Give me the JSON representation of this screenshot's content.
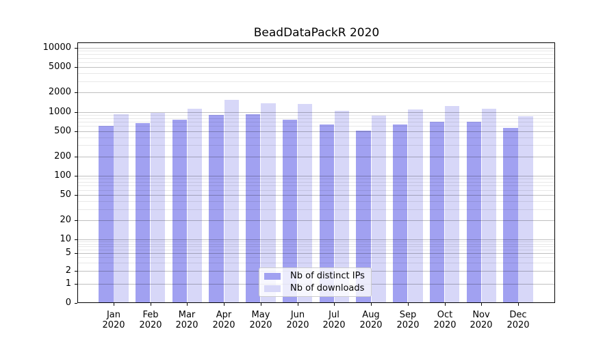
{
  "title": "BeadDataPackR 2020",
  "chart_data": {
    "type": "bar",
    "title": "BeadDataPackR 2020",
    "categories": [
      "Jan 2020",
      "Feb 2020",
      "Mar 2020",
      "Apr 2020",
      "May 2020",
      "Jun 2020",
      "Jul 2020",
      "Aug 2020",
      "Sep 2020",
      "Oct 2020",
      "Nov 2020",
      "Dec 2020"
    ],
    "series": [
      {
        "key": "distinct-ips",
        "name": "Nb of distinct IPs",
        "color": "#a1a1f1",
        "values": [
          600,
          660,
          762,
          893,
          918,
          757,
          632,
          514,
          627,
          708,
          698,
          559
        ]
      },
      {
        "key": "downloads",
        "name": "Nb of downloads",
        "color": "#d7d7f8",
        "values": [
          921,
          958,
          1112,
          1558,
          1378,
          1325,
          1051,
          878,
          1104,
          1249,
          1115,
          856
        ]
      }
    ],
    "xlabel": "",
    "ylabel": "",
    "yscale": "symlog",
    "y_ticks": [
      10000,
      5000,
      2000,
      1000,
      500,
      200,
      100,
      50,
      20,
      10,
      5,
      2,
      1,
      0
    ],
    "y_minor_ticks_mantissas": [
      3,
      4,
      6,
      7,
      8,
      9
    ],
    "ylim": [
      0,
      12000
    ],
    "grid": true,
    "legend_position": "lower center"
  }
}
